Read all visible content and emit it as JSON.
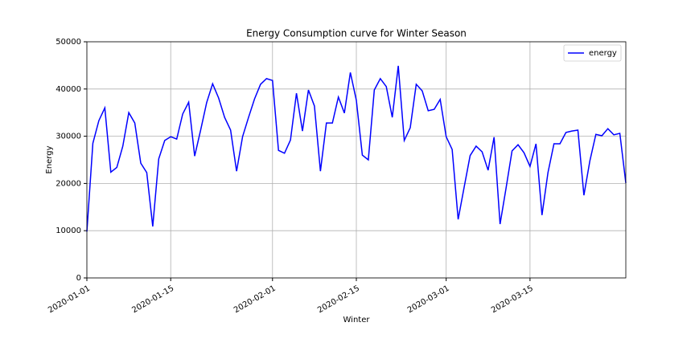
{
  "chart_data": {
    "type": "line",
    "title": "Energy Consumption curve for Winter Season",
    "x_label": "Winter",
    "y_label": "Energy",
    "x": [
      "2020-01-01",
      "2020-01-02",
      "2020-01-03",
      "2020-01-04",
      "2020-01-05",
      "2020-01-06",
      "2020-01-07",
      "2020-01-08",
      "2020-01-09",
      "2020-01-10",
      "2020-01-11",
      "2020-01-12",
      "2020-01-13",
      "2020-01-14",
      "2020-01-15",
      "2020-01-16",
      "2020-01-17",
      "2020-01-18",
      "2020-01-19",
      "2020-01-20",
      "2020-01-21",
      "2020-01-22",
      "2020-01-23",
      "2020-01-24",
      "2020-01-25",
      "2020-01-26",
      "2020-01-27",
      "2020-01-28",
      "2020-01-29",
      "2020-01-30",
      "2020-01-31",
      "2020-02-01",
      "2020-02-02",
      "2020-02-03",
      "2020-02-04",
      "2020-02-05",
      "2020-02-06",
      "2020-02-07",
      "2020-02-08",
      "2020-02-09",
      "2020-02-10",
      "2020-02-11",
      "2020-02-12",
      "2020-02-13",
      "2020-02-14",
      "2020-02-15",
      "2020-02-16",
      "2020-02-17",
      "2020-02-18",
      "2020-02-19",
      "2020-02-20",
      "2020-02-21",
      "2020-02-22",
      "2020-02-23",
      "2020-02-24",
      "2020-02-25",
      "2020-02-26",
      "2020-02-27",
      "2020-02-28",
      "2020-02-29",
      "2020-03-01",
      "2020-03-02",
      "2020-03-03",
      "2020-03-04",
      "2020-03-05",
      "2020-03-06",
      "2020-03-07",
      "2020-03-08",
      "2020-03-09",
      "2020-03-10",
      "2020-03-11",
      "2020-03-12",
      "2020-03-13",
      "2020-03-14",
      "2020-03-15",
      "2020-03-16",
      "2020-03-17",
      "2020-03-18",
      "2020-03-19",
      "2020-03-20",
      "2020-03-21",
      "2020-03-22",
      "2020-03-23",
      "2020-03-24",
      "2020-03-25",
      "2020-03-26",
      "2020-03-27",
      "2020-03-28",
      "2020-03-29",
      "2020-03-30",
      "2020-03-31"
    ],
    "series": [
      {
        "name": "energy",
        "color": "#0000ff",
        "values": [
          9800,
          28500,
          33300,
          36000,
          22400,
          23400,
          27900,
          35000,
          32800,
          24300,
          22300,
          10900,
          25200,
          29100,
          29900,
          29400,
          34700,
          37200,
          25800,
          31300,
          37100,
          41100,
          38100,
          34000,
          31300,
          22600,
          29900,
          34000,
          37900,
          41000,
          42200,
          41800,
          27000,
          26400,
          29200,
          39100,
          31100,
          39800,
          36400,
          22600,
          32800,
          32800,
          38300,
          34900,
          43500,
          37600,
          26000,
          25000,
          39800,
          42200,
          40500,
          34000,
          44900,
          29100,
          31800,
          41000,
          39600,
          35400,
          35700,
          37800,
          29900,
          27200,
          12400,
          19200,
          25900,
          27900,
          26700,
          22800,
          29800,
          11400,
          19000,
          26900,
          28200,
          26500,
          23600,
          28400,
          13300,
          22300,
          28400,
          28400,
          30800,
          31100,
          31300,
          17500,
          24800,
          30400,
          30100,
          31600,
          30300,
          30600,
          20100
        ]
      }
    ],
    "xlim": [
      "2020-01-01",
      "2020-03-31"
    ],
    "xticks": [
      "2020-01-01",
      "2020-01-15",
      "2020-02-01",
      "2020-02-15",
      "2020-03-01",
      "2020-03-15"
    ],
    "ylim": [
      0,
      50000
    ],
    "yticks": [
      0,
      10000,
      20000,
      30000,
      40000,
      50000
    ],
    "grid": true,
    "legend": "upper right"
  }
}
